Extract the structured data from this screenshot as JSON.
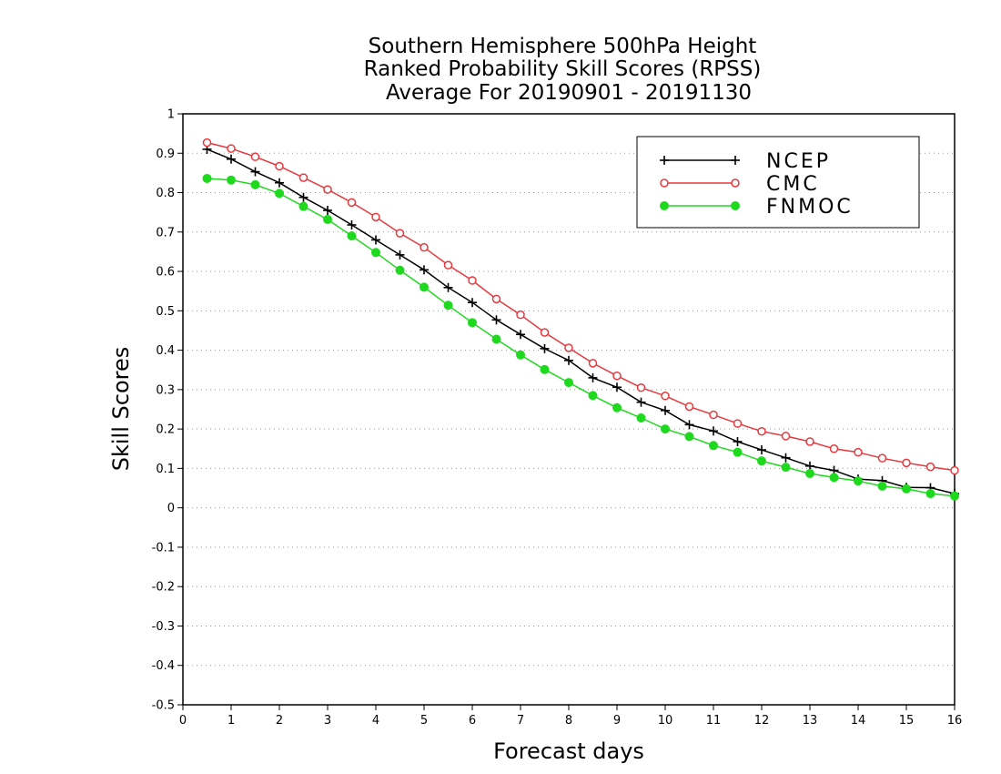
{
  "chart_data": {
    "type": "line",
    "title": [
      "Southern Hemisphere 500hPa Height",
      "Ranked Probability Skill Scores (RPSS)",
      "Average For 20190901 - 20191130"
    ],
    "xlabel": "Forecast days",
    "ylabel": "Skill Scores",
    "xlim": [
      0,
      16
    ],
    "ylim": [
      -0.5,
      1
    ],
    "xticks": [
      0,
      1,
      2,
      3,
      4,
      5,
      6,
      7,
      8,
      9,
      10,
      11,
      12,
      13,
      14,
      15,
      16
    ],
    "xtick_labels": [
      "0",
      "1",
      "2",
      "3",
      "4",
      "5",
      "6",
      "7",
      "8",
      "9",
      "10",
      "11",
      "12",
      "13",
      "14",
      "15",
      "16"
    ],
    "yticks": [
      -0.5,
      -0.4,
      -0.3,
      -0.2,
      -0.1,
      0,
      0.1,
      0.2,
      0.3,
      0.4,
      0.5,
      0.6,
      0.7,
      0.8,
      0.9,
      1
    ],
    "ytick_labels": [
      "-0.5",
      "-0.4",
      "-0.3",
      "-0.2",
      "-0.1",
      "0",
      "0.1",
      "0.2",
      "0.3",
      "0.4",
      "0.5",
      "0.6",
      "0.7",
      "0.8",
      "0.9",
      "1"
    ],
    "grid": "horizontal dotted",
    "legend_position": "top-right",
    "x": [
      0.5,
      1.0,
      1.5,
      2.0,
      2.5,
      3.0,
      3.5,
      4.0,
      4.5,
      5.0,
      5.5,
      6.0,
      6.5,
      7.0,
      7.5,
      8.0,
      8.5,
      9.0,
      9.5,
      10.0,
      10.5,
      11.0,
      11.5,
      12.0,
      12.5,
      13.0,
      13.5,
      14.0,
      14.5,
      15.0,
      15.5,
      16.0
    ],
    "series": [
      {
        "name": "NCEP",
        "color": "#000000",
        "marker": "plus",
        "values": [
          0.91,
          0.885,
          0.853,
          0.825,
          0.788,
          0.755,
          0.718,
          0.68,
          0.642,
          0.604,
          0.559,
          0.521,
          0.477,
          0.44,
          0.404,
          0.374,
          0.33,
          0.306,
          0.268,
          0.247,
          0.211,
          0.195,
          0.168,
          0.147,
          0.127,
          0.106,
          0.095,
          0.073,
          0.069,
          0.052,
          0.051,
          0.036
        ]
      },
      {
        "name": "CMC",
        "color": "#e8383d",
        "marker": "open-circle",
        "values": [
          0.927,
          0.912,
          0.891,
          0.867,
          0.838,
          0.808,
          0.775,
          0.738,
          0.697,
          0.661,
          0.616,
          0.577,
          0.53,
          0.49,
          0.445,
          0.406,
          0.367,
          0.335,
          0.305,
          0.284,
          0.257,
          0.236,
          0.214,
          0.194,
          0.182,
          0.168,
          0.15,
          0.141,
          0.126,
          0.114,
          0.104,
          0.095
        ]
      },
      {
        "name": "FNMOC",
        "color": "#1fd91f",
        "marker": "filled-circle",
        "values": [
          0.836,
          0.832,
          0.82,
          0.798,
          0.765,
          0.732,
          0.69,
          0.648,
          0.603,
          0.56,
          0.514,
          0.47,
          0.428,
          0.388,
          0.351,
          0.318,
          0.285,
          0.254,
          0.228,
          0.2,
          0.181,
          0.158,
          0.141,
          0.119,
          0.103,
          0.087,
          0.077,
          0.068,
          0.055,
          0.048,
          0.036,
          0.03
        ]
      }
    ]
  }
}
